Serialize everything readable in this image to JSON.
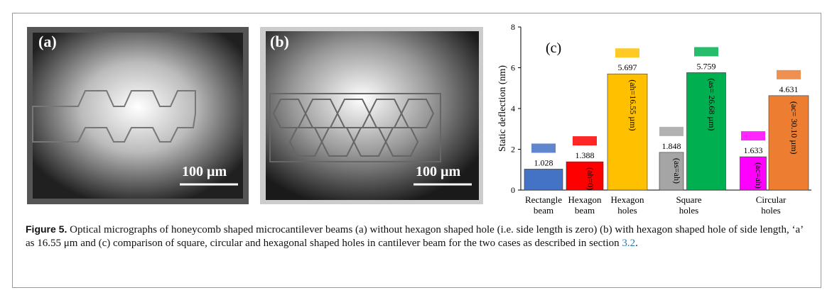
{
  "panels": [
    {
      "label": "(a)",
      "scale": "100 µm"
    },
    {
      "label": "(b)",
      "scale": "100 µm"
    }
  ],
  "chart_data": {
    "type": "grouped-bar",
    "panel_label": "(c)",
    "y_label": "Static deflection (nm)",
    "ylim": [
      0,
      8
    ],
    "yticks": [
      0,
      2,
      4,
      6,
      8
    ],
    "groups": [
      {
        "label": "Rectangle beam",
        "bars": [
          {
            "value": 1.028,
            "color": "#4472c4"
          }
        ]
      },
      {
        "label": "Hexagon beam",
        "bars": [
          {
            "value": 1.388,
            "color": "#ff0000",
            "annotation": "(ah=0)"
          }
        ]
      },
      {
        "label": "Hexagon holes",
        "bars": [
          {
            "value": 5.697,
            "color": "#ffc000",
            "annotation": "(ah=16.55 µm)"
          }
        ]
      },
      {
        "label": "Square holes",
        "bars": [
          {
            "value": 1.848,
            "color": "#a5a5a5",
            "annotation": "(as=ah)"
          },
          {
            "value": 5.759,
            "color": "#00b050",
            "annotation": "(as= 26.68 µm)"
          }
        ]
      },
      {
        "label": "Circular holes",
        "bars": [
          {
            "value": 1.633,
            "color": "#ff00ff",
            "annotation": "(ac=ah)"
          },
          {
            "value": 4.631,
            "color": "#ed7d31",
            "annotation": "(ac= 30.10 µm)"
          }
        ]
      }
    ]
  },
  "caption": {
    "label": "Figure 5.",
    "text": "Optical micrographs of honeycomb shaped microcantilever beams (a) without hexagon shaped hole (i.e. side length is zero) (b) with hexagon shaped hole of side length, ‘a’ as 16.55 μm and (c) comparison of square, circular and hexagonal shaped holes in cantilever beam for the two cases as described in section ",
    "ref": "3.2",
    "end": "."
  }
}
